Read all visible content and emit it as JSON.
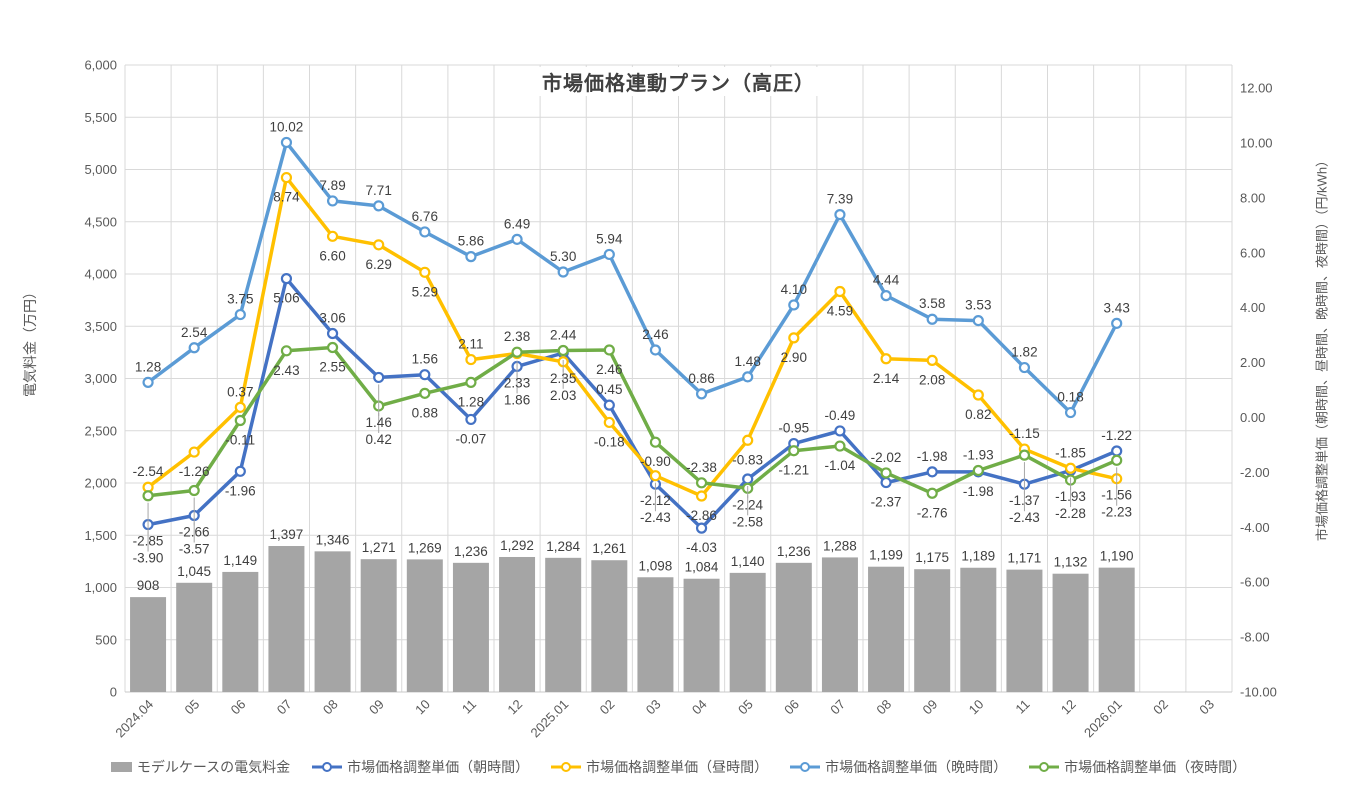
{
  "chart_data": {
    "type": "combo-bar-line",
    "title": "市場価格連動プラン（高圧）",
    "categories": [
      "2024.04",
      "05",
      "06",
      "07",
      "08",
      "09",
      "10",
      "11",
      "12",
      "2025.01",
      "02",
      "03",
      "04",
      "05",
      "06",
      "07",
      "08",
      "09",
      "10",
      "11",
      "12",
      "2026.01",
      "02",
      "03"
    ],
    "bar_series": {
      "name": "モデルケースの電気料金",
      "color": "#A5A5A5",
      "axis": "left",
      "values": [
        908,
        1045,
        1149,
        1397,
        1346,
        1271,
        1269,
        1236,
        1292,
        1284,
        1261,
        1098,
        1084,
        1140,
        1236,
        1288,
        1199,
        1175,
        1189,
        1171,
        1132,
        1190,
        null,
        null
      ]
    },
    "line_series": [
      {
        "name": "市場価格調整単価（朝時間）",
        "color": "#4472C4",
        "axis": "right",
        "values": [
          -3.9,
          -3.57,
          -1.96,
          5.06,
          3.06,
          1.46,
          1.56,
          -0.07,
          1.86,
          2.35,
          0.45,
          -2.43,
          -4.03,
          -2.24,
          -0.95,
          -0.49,
          -2.37,
          -1.98,
          -1.98,
          -2.43,
          -1.93,
          -1.22,
          null,
          null
        ]
      },
      {
        "name": "市場価格調整単価（昼時間）",
        "color": "#FFC000",
        "axis": "right",
        "values": [
          -2.54,
          -1.26,
          0.37,
          8.74,
          6.6,
          6.29,
          5.29,
          2.11,
          2.33,
          2.03,
          -0.18,
          -2.12,
          -2.86,
          -0.83,
          2.9,
          4.59,
          2.14,
          2.08,
          0.82,
          -1.15,
          -1.85,
          -2.23,
          null,
          null
        ]
      },
      {
        "name": "市場価格調整単価（晩時間）",
        "color": "#5B9BD5",
        "axis": "right",
        "values": [
          1.28,
          2.54,
          3.75,
          10.02,
          7.89,
          7.71,
          6.76,
          5.86,
          6.49,
          5.3,
          5.94,
          2.46,
          0.86,
          1.48,
          4.1,
          7.39,
          4.44,
          3.58,
          3.53,
          1.82,
          0.18,
          3.43,
          null,
          null
        ]
      },
      {
        "name": "市場価格調整単価（夜時間）",
        "color": "#70AD47",
        "axis": "right",
        "values": [
          -2.85,
          -2.66,
          -0.11,
          2.43,
          2.55,
          0.42,
          0.88,
          1.28,
          2.38,
          2.44,
          2.46,
          -0.9,
          -2.38,
          -2.58,
          -1.21,
          -1.04,
          -2.02,
          -2.76,
          -1.93,
          -1.37,
          -2.28,
          -1.56,
          null,
          null
        ]
      }
    ],
    "left_axis": {
      "title": "電気料金（万円）",
      "min": 0,
      "max": 6000,
      "step": 500,
      "tick_labels": [
        "0",
        "500",
        "1,000",
        "1,500",
        "2,000",
        "2,500",
        "3,000",
        "3,500",
        "4,000",
        "4,500",
        "5,000",
        "5,500",
        "6,000"
      ]
    },
    "right_axis": {
      "title": "市場価格調整単価（朝時間、昼時間、晩時間、夜時間）（円/kWh）",
      "min": -10,
      "max": 12,
      "step": 2,
      "tick_labels": [
        "-10.00",
        "-8.00",
        "-6.00",
        "-4.00",
        "-2.00",
        "0.00",
        "2.00",
        "4.00",
        "6.00",
        "8.00",
        "10.00",
        "12.00"
      ]
    },
    "grid": true,
    "legend_position": "bottom",
    "colors": {
      "gridline": "#D9D9D9",
      "axis_text": "#595959",
      "data_label": "#404040",
      "leader_line": "#A6A6A6"
    }
  }
}
